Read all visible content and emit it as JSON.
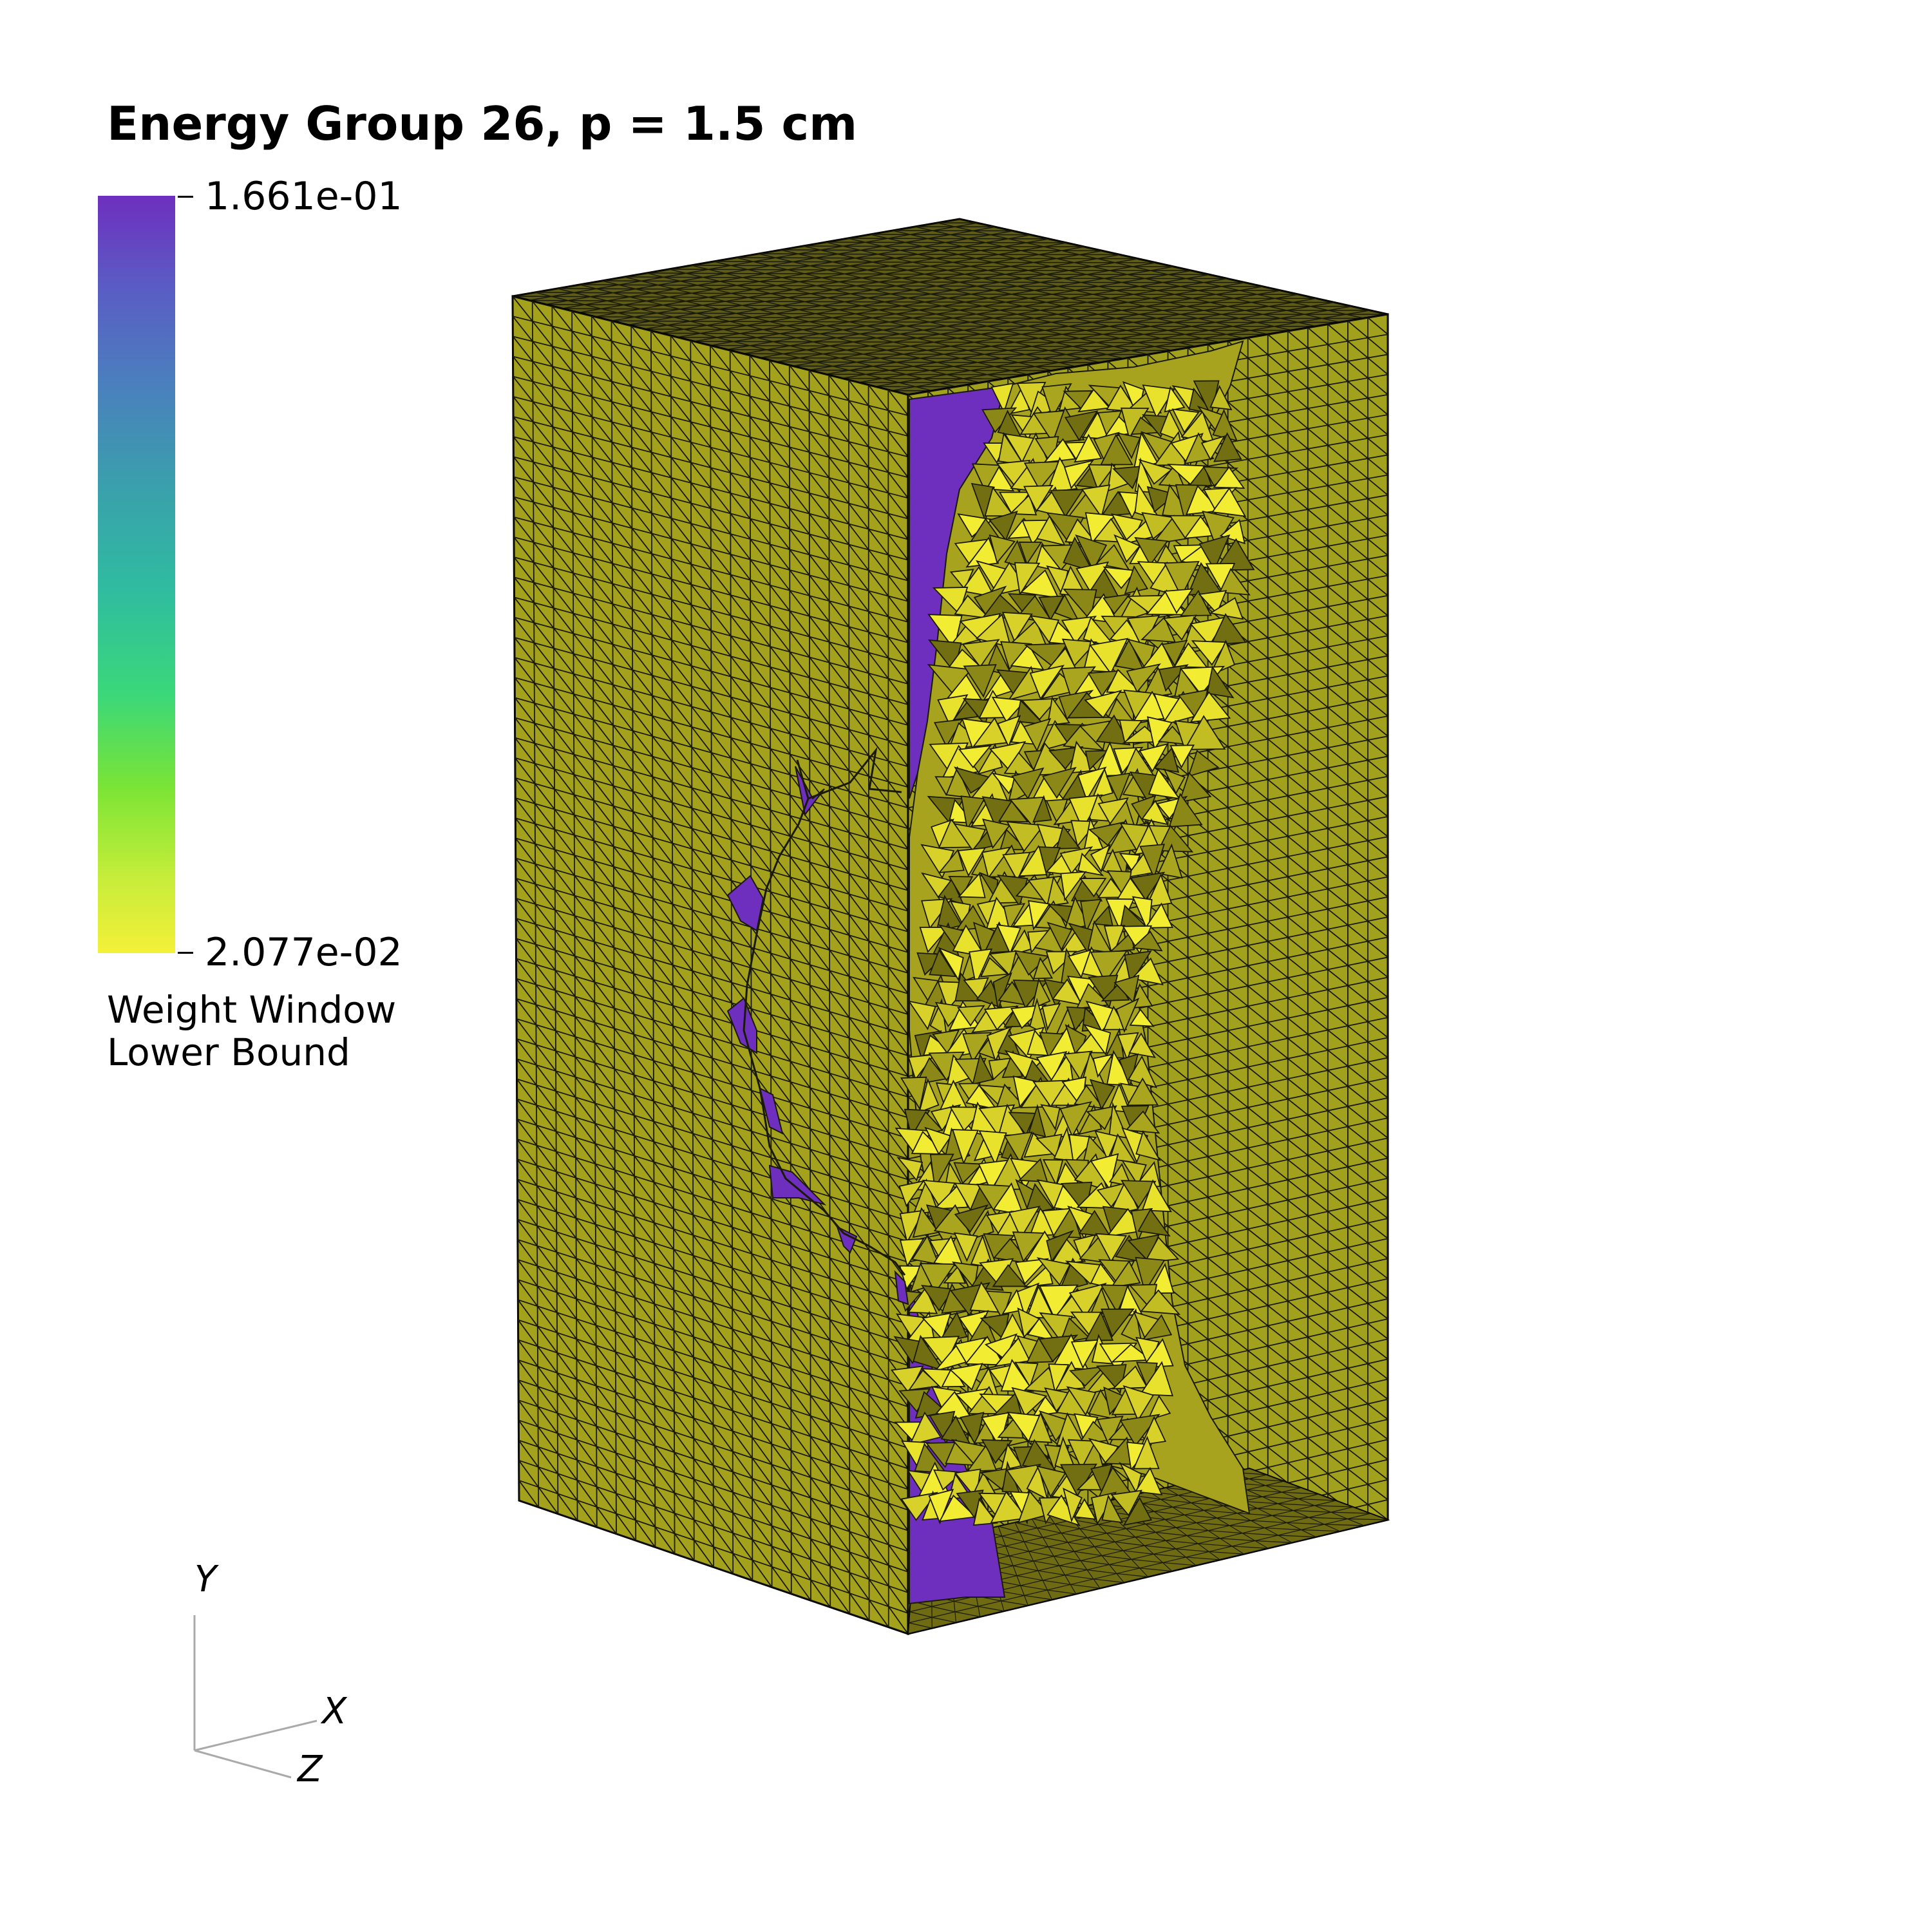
{
  "title": "Energy Group 26, p = 1.5 cm",
  "colorbar": {
    "max_label": "1.661e-01",
    "min_label": "2.077e-02",
    "title_line1": "Weight Window",
    "title_line2": "Lower Bound",
    "colormap_name": "viridis-reversed",
    "colors": [
      "#6e2fbe",
      "#5a5cc4",
      "#4a80bd",
      "#3a9fac",
      "#2fbca0",
      "#3bd879",
      "#7ae436",
      "#c6ed3a",
      "#f4f038"
    ]
  },
  "axes": {
    "y_label": "Y",
    "x_label": "X",
    "z_label": "Z"
  },
  "scene": {
    "box_face_color": "#a4a11c",
    "box_top_color": "#5e5c16",
    "box_side_color": "#a2a11d",
    "bright_color": "#e8e22c",
    "dark_color": "#6e6b13",
    "low_color": "#6e2fbe",
    "mesh_line_color": "#1a1a08"
  }
}
